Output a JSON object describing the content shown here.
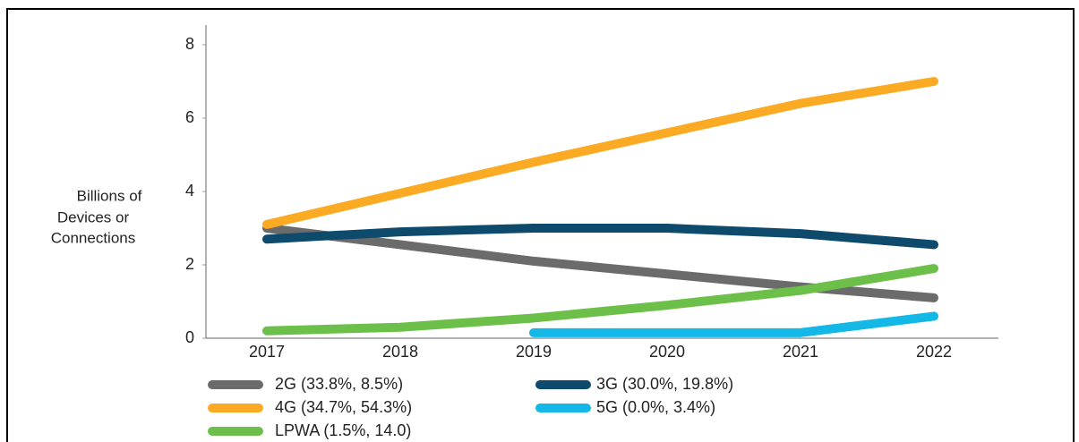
{
  "chart_data": {
    "type": "line",
    "y_label": [
      "Billions of",
      "Devices or",
      "Connections"
    ],
    "categories": [
      "2017",
      "2018",
      "2019",
      "2020",
      "2021",
      "2022"
    ],
    "series": [
      {
        "name": "2G (33.8%, 8.5%)",
        "color": "#6b6b6b",
        "values": [
          3.0,
          2.55,
          2.1,
          1.75,
          1.4,
          1.1
        ]
      },
      {
        "name": "3G (30.0%, 19.8%)",
        "color": "#0e4a6b",
        "values": [
          2.7,
          2.9,
          3.0,
          3.0,
          2.85,
          2.55
        ]
      },
      {
        "name": "4G (34.7%, 54.3%)",
        "color": "#fbab23",
        "values": [
          3.1,
          3.95,
          4.8,
          5.6,
          6.4,
          7.0
        ]
      },
      {
        "name": "5G (0.0%, 3.4%)",
        "color": "#14b8e6",
        "values": [
          null,
          null,
          0.15,
          0.15,
          0.15,
          0.6
        ]
      },
      {
        "name": "LPWA (1.5%, 14.0)",
        "color": "#6cc04a",
        "values": [
          0.2,
          0.3,
          0.55,
          0.9,
          1.3,
          1.9
        ]
      }
    ],
    "ylim": [
      0,
      8
    ],
    "yticks": [
      0,
      2,
      4,
      6,
      8
    ]
  }
}
